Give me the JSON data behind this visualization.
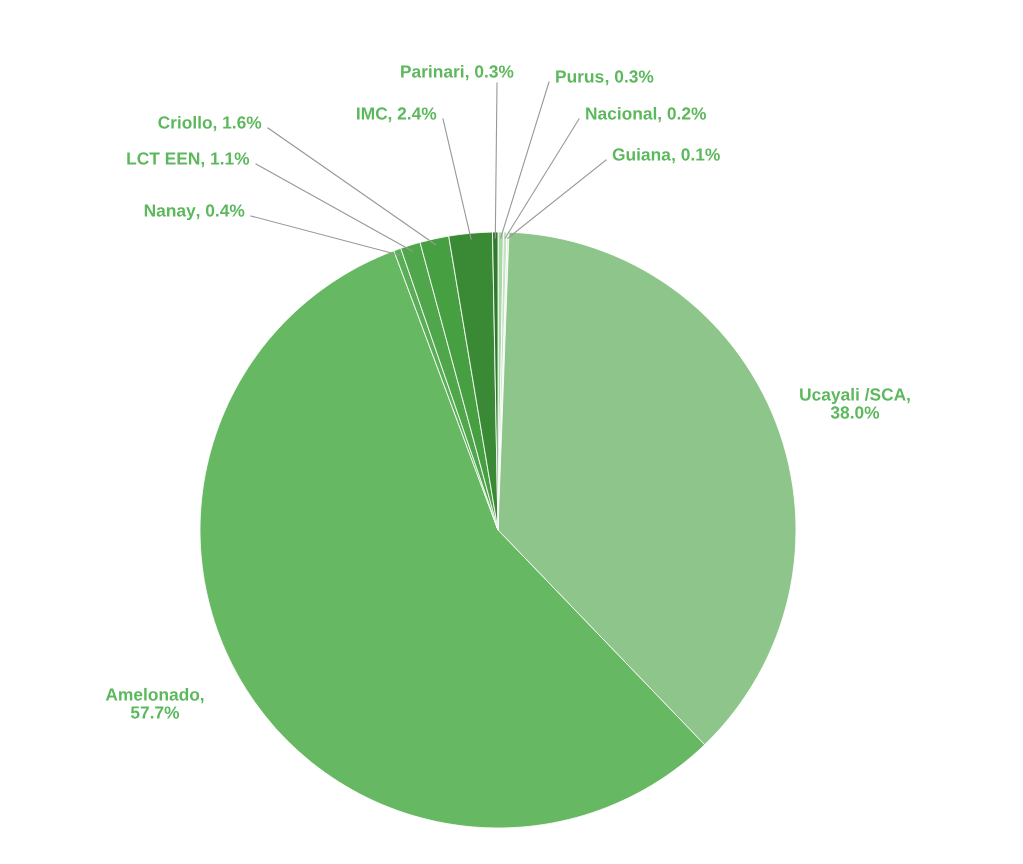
{
  "chart_data": {
    "type": "pie",
    "categories": [
      "Purus",
      "Nacional",
      "Guiana",
      "Ucayali /SCA",
      "Amelonado",
      "Nanay",
      "LCT EEN",
      "Criollo",
      "IMC",
      "Parinari"
    ],
    "values": [
      0.3,
      0.2,
      0.1,
      38.0,
      57.7,
      0.4,
      1.1,
      1.6,
      2.4,
      0.3
    ],
    "colors": [
      "#a9d7a5",
      "#c5e4c2",
      "#dff0dd",
      "#8dc58a",
      "#66b862",
      "#5aae55",
      "#4fa64b",
      "#46a042",
      "#3a8a35",
      "#2f7a2c"
    ],
    "data_labels": true,
    "value_labels": [
      ", 0.3%",
      ", 0.2%",
      ", 0.1%",
      ",\n38.0%",
      ",\n57.7%",
      ", 0.4%",
      ", 1.1%",
      ", 1.6%",
      ", 2.4%",
      ", 0.3%"
    ]
  }
}
